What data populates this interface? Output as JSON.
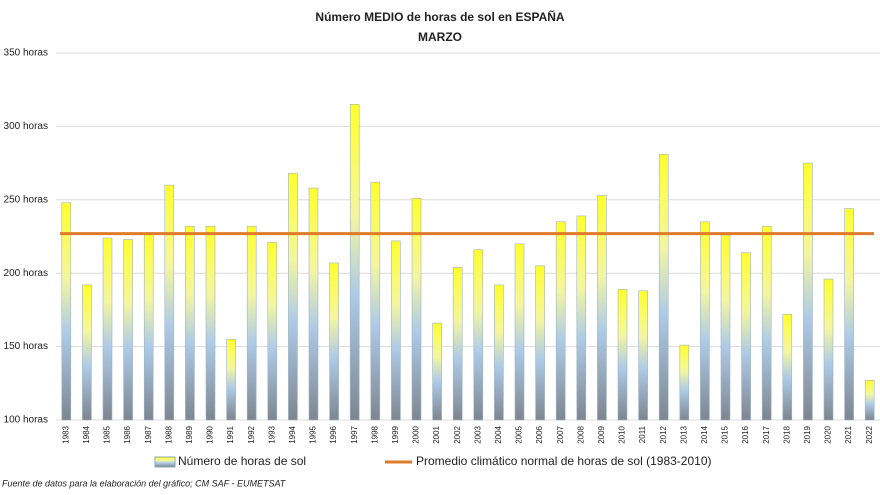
{
  "chart_data": {
    "type": "bar",
    "title": "Número MEDIO de horas de sol en ESPAÑA",
    "subtitle": "MARZO",
    "source": "Fuente de datos para la elaboración del gráfico; CM SAF - EUMETSAT",
    "categories": [
      "1983",
      "1984",
      "1985",
      "1986",
      "1987",
      "1988",
      "1989",
      "1990",
      "1991",
      "1992",
      "1993",
      "1994",
      "1995",
      "1996",
      "1997",
      "1998",
      "1999",
      "2000",
      "2001",
      "2002",
      "2003",
      "2004",
      "2005",
      "2006",
      "2007",
      "2008",
      "2009",
      "2010",
      "2011",
      "2012",
      "2013",
      "2014",
      "2015",
      "2016",
      "2017",
      "2018",
      "2019",
      "2020",
      "2021",
      "2022"
    ],
    "series": [
      {
        "name": "Número de horas de sol",
        "values": [
          248,
          192,
          224,
          223,
          227,
          260,
          232,
          232,
          155,
          232,
          221,
          268,
          258,
          207,
          315,
          262,
          222,
          251,
          166,
          204,
          216,
          192,
          220,
          205,
          235,
          239,
          253,
          189,
          188,
          281,
          151,
          235,
          226,
          214,
          232,
          172,
          275,
          196,
          244,
          127
        ]
      }
    ],
    "reference_line": {
      "name": "Promedio climático normal de horas de sol (1983-2010)",
      "value": 227,
      "color": "#e07b2a"
    },
    "ylim": [
      100,
      350
    ],
    "yticks": [
      {
        "value": 100,
        "label": "100 horas"
      },
      {
        "value": 150,
        "label": "150 horas"
      },
      {
        "value": 200,
        "label": "200 horas"
      },
      {
        "value": 250,
        "label": "250 horas"
      },
      {
        "value": 300,
        "label": "300 horas"
      },
      {
        "value": 350,
        "label": "350 horas"
      }
    ],
    "grid": true
  }
}
